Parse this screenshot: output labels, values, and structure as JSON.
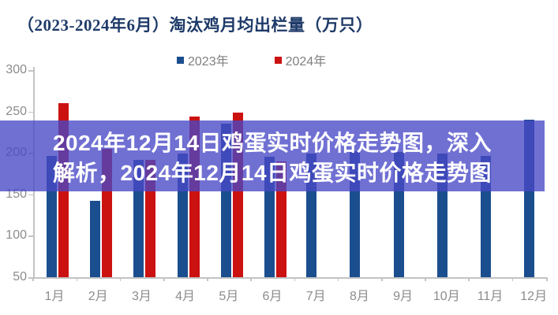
{
  "title": "（2023-2024年6月）淘汰鸡月均出栏量（万只）",
  "legend": [
    {
      "label": "2023年",
      "color": "#1b4e8f"
    },
    {
      "label": "2024年",
      "color": "#cc1111"
    }
  ],
  "overlay": {
    "line1": "2024年12月14日鸡蛋实时价格走势图，深入",
    "line2": "解析，2024年12月14日鸡蛋实时价格走势图",
    "text_color": "#ffffff",
    "band_color": "rgba(72,72,198,0.78)"
  },
  "chart_data": {
    "type": "bar",
    "title": "（2023-2024年6月）淘汰鸡月均出栏量（万只）",
    "categories": [
      "1月",
      "2月",
      "3月",
      "4月",
      "5月",
      "6月",
      "7月",
      "8月",
      "9月",
      "10月",
      "11月",
      "12月"
    ],
    "series": [
      {
        "name": "2023年",
        "color": "#1b4e8f",
        "values": [
          196,
          142,
          192,
          199,
          235,
          195,
          199,
          202,
          201,
          199,
          196,
          240
        ]
      },
      {
        "name": "2024年",
        "color": "#cc1111",
        "values": [
          260,
          205,
          192,
          244,
          249,
          190,
          null,
          null,
          null,
          null,
          null,
          null
        ]
      }
    ],
    "ylim": [
      50,
      300
    ],
    "yticks": [
      300,
      250,
      200,
      150,
      100,
      50
    ],
    "xlabel": "",
    "ylabel": "",
    "grid": false,
    "legend_position": "top-center"
  }
}
